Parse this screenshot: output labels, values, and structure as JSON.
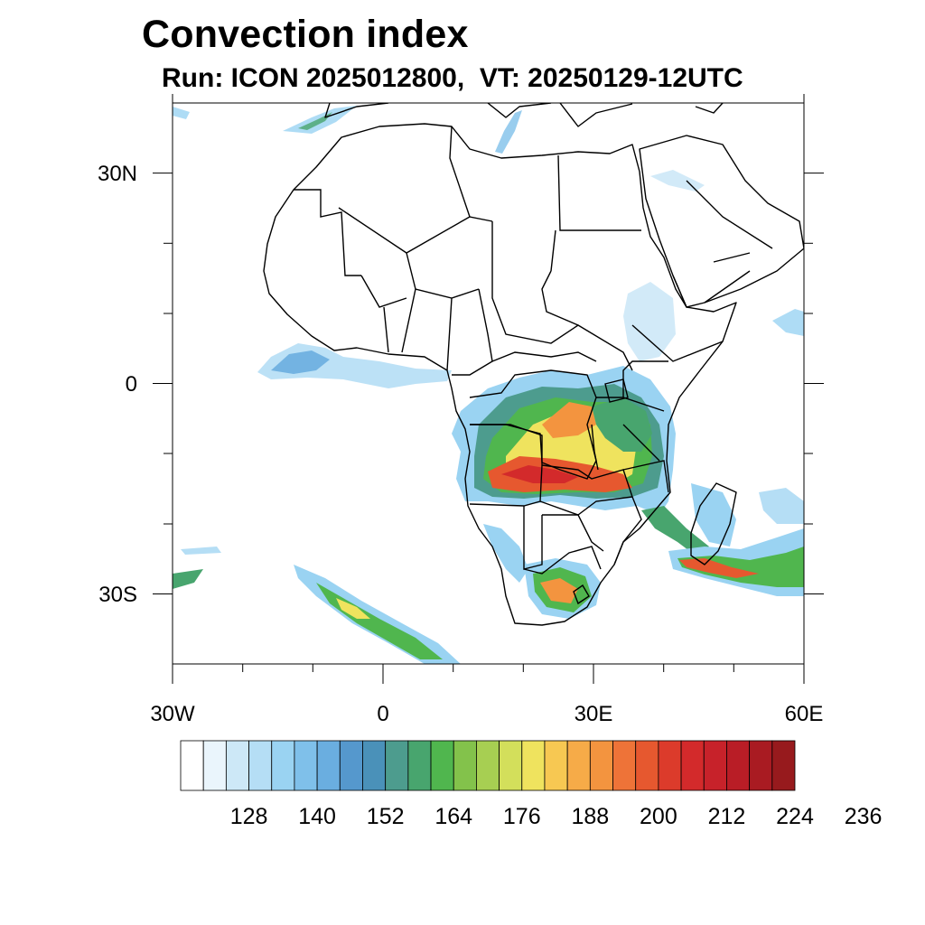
{
  "title": "Convection index",
  "subtitle": "Run: ICON 2025012800,  VT: 20250129-12UTC",
  "map": {
    "projection": "cylindrical equidistant",
    "lon_range": [
      -30,
      60
    ],
    "lat_range": [
      -40,
      40
    ],
    "x_ticks": [
      {
        "lon": -30,
        "label": "30W"
      },
      {
        "lon": 0,
        "label": "0"
      },
      {
        "lon": 30,
        "label": "30E"
      },
      {
        "lon": 60,
        "label": "60E"
      }
    ],
    "y_ticks": [
      {
        "lat": 30,
        "label": "30N"
      },
      {
        "lat": 0,
        "label": "0"
      },
      {
        "lat": -30,
        "label": "30S"
      }
    ]
  },
  "colorbar": {
    "colors": [
      "#ffffff",
      "#eaf5fc",
      "#cde8f7",
      "#b5def5",
      "#9ad3f2",
      "#7fc0ea",
      "#6aaee0",
      "#5598cd",
      "#4a91b9",
      "#4d9c8e",
      "#48a56e",
      "#50b64e",
      "#83c24b",
      "#a7cf52",
      "#d3df5b",
      "#efe35e",
      "#f7c852",
      "#f6ab48",
      "#f3943f",
      "#ee7338",
      "#e6582f",
      "#dc3b2b",
      "#d32a2b",
      "#c7222a",
      "#b91d26",
      "#a91b22",
      "#971a1d"
    ],
    "labels": [
      "128",
      "140",
      "152",
      "164",
      "176",
      "188",
      "200",
      "212",
      "224",
      "236"
    ]
  }
}
